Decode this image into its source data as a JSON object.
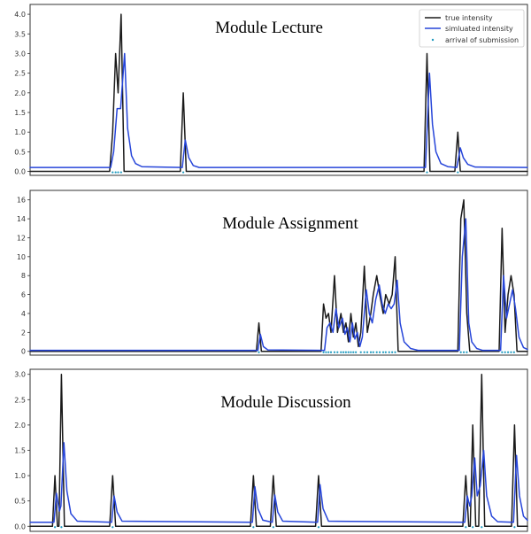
{
  "colors": {
    "true": "#1a1a1a",
    "simulated": "#2645d9",
    "arrival": "#1f9bc0"
  },
  "legend": {
    "placement": "top-right",
    "entries": [
      {
        "label": "true intensity",
        "color": "#1a1a1a",
        "kind": "line"
      },
      {
        "label": "simluated intensity",
        "color": "#2645d9",
        "kind": "line"
      },
      {
        "label": "arrival of submission",
        "color": "#1f9bc0",
        "kind": "marker"
      }
    ]
  },
  "chart_data": [
    {
      "type": "line",
      "title": "Module Lecture",
      "xlim": [
        0,
        100
      ],
      "ylim": [
        -0.1,
        4.25
      ],
      "yticks": [
        0.0,
        0.5,
        1.0,
        1.5,
        2.0,
        2.5,
        3.0,
        3.5,
        4.0
      ],
      "ytick_labels": [
        "0.0",
        "0.5",
        "1.0",
        "1.5",
        "2.0",
        "2.5",
        "3.0",
        "3.5",
        "4.0"
      ],
      "baseline": {
        "true": 0.0,
        "simulated": 0.1
      },
      "series": [
        {
          "key": "true",
          "points": [
            [
              0,
              0
            ],
            [
              16,
              0
            ],
            [
              16.6,
              1.0
            ],
            [
              17.2,
              3.0
            ],
            [
              17.7,
              2.0
            ],
            [
              18.3,
              4.0
            ],
            [
              18.9,
              0.0
            ],
            [
              30.2,
              0.0
            ],
            [
              30.8,
              2.0
            ],
            [
              31.4,
              0.0
            ],
            [
              79.2,
              0.0
            ],
            [
              79.8,
              3.0
            ],
            [
              80.4,
              0.0
            ],
            [
              85.4,
              0.0
            ],
            [
              86.0,
              1.0
            ],
            [
              86.5,
              0.0
            ],
            [
              100,
              0
            ]
          ]
        },
        {
          "key": "simulated",
          "points": [
            [
              0,
              0.1
            ],
            [
              16.2,
              0.1
            ],
            [
              16.8,
              0.5
            ],
            [
              17.5,
              1.6
            ],
            [
              18.2,
              1.6
            ],
            [
              19.0,
              3.0
            ],
            [
              19.6,
              1.1
            ],
            [
              20.4,
              0.4
            ],
            [
              21.2,
              0.2
            ],
            [
              22.5,
              0.12
            ],
            [
              30.6,
              0.1
            ],
            [
              31.2,
              0.8
            ],
            [
              31.9,
              0.35
            ],
            [
              32.8,
              0.15
            ],
            [
              34,
              0.1
            ],
            [
              79.5,
              0.1
            ],
            [
              80.3,
              2.5
            ],
            [
              80.9,
              1.2
            ],
            [
              81.6,
              0.5
            ],
            [
              82.6,
              0.2
            ],
            [
              84,
              0.12
            ],
            [
              85.8,
              0.1
            ],
            [
              86.5,
              0.6
            ],
            [
              87.1,
              0.35
            ],
            [
              88,
              0.18
            ],
            [
              89.5,
              0.11
            ],
            [
              100,
              0.1
            ]
          ]
        }
      ],
      "arrivals": [
        [
          16.6,
          0
        ],
        [
          17.2,
          0
        ],
        [
          17.7,
          0
        ],
        [
          18.3,
          0
        ],
        [
          30.8,
          0
        ],
        [
          79.8,
          0
        ],
        [
          86.0,
          0
        ]
      ]
    },
    {
      "type": "line",
      "title": "Module Assignment",
      "xlim": [
        0,
        100
      ],
      "ylim": [
        -0.4,
        17
      ],
      "yticks": [
        0,
        2,
        4,
        6,
        8,
        10,
        12,
        14,
        16
      ],
      "ytick_labels": [
        "0",
        "2",
        "4",
        "6",
        "8",
        "10",
        "12",
        "14",
        "16"
      ],
      "baseline": {
        "true": 0.0,
        "simulated": 0.1
      },
      "series": [
        {
          "key": "true",
          "points": [
            [
              0,
              0
            ],
            [
              45.5,
              0
            ],
            [
              46,
              3.0
            ],
            [
              46.5,
              0
            ],
            [
              58.5,
              0
            ],
            [
              59,
              5.0
            ],
            [
              59.5,
              3.5
            ],
            [
              60,
              4.0
            ],
            [
              60.5,
              2.0
            ],
            [
              61.2,
              8.0
            ],
            [
              61.8,
              2.0
            ],
            [
              62.5,
              4.0
            ],
            [
              63,
              2.0
            ],
            [
              63.5,
              3.0
            ],
            [
              64,
              1.0
            ],
            [
              64.5,
              4.0
            ],
            [
              65,
              1.5
            ],
            [
              65.5,
              3.0
            ],
            [
              66,
              0.5
            ],
            [
              66.5,
              2.0
            ],
            [
              67.2,
              9.0
            ],
            [
              67.8,
              2.0
            ],
            [
              68.5,
              4.0
            ],
            [
              69,
              6.0
            ],
            [
              69.7,
              8.0
            ],
            [
              70.3,
              6.0
            ],
            [
              71,
              4.0
            ],
            [
              71.5,
              6.0
            ],
            [
              72.2,
              5.0
            ],
            [
              72.8,
              6.0
            ],
            [
              73.4,
              10.0
            ],
            [
              74,
              0.0
            ],
            [
              86,
              0
            ],
            [
              86.6,
              14.0
            ],
            [
              87.2,
              16.0
            ],
            [
              87.8,
              4.0
            ],
            [
              88.4,
              0.0
            ],
            [
              94.3,
              0
            ],
            [
              94.9,
              13.0
            ],
            [
              95.5,
              2.0
            ],
            [
              96.1,
              6.0
            ],
            [
              96.7,
              8.0
            ],
            [
              97.3,
              6.0
            ],
            [
              97.9,
              0.0
            ],
            [
              100,
              0
            ]
          ]
        },
        {
          "key": "simulated",
          "points": [
            [
              0,
              0.1
            ],
            [
              45.8,
              0.1
            ],
            [
              46.3,
              1.8
            ],
            [
              46.9,
              0.5
            ],
            [
              47.8,
              0.15
            ],
            [
              59.2,
              0.1
            ],
            [
              59.7,
              2.5
            ],
            [
              60.3,
              3.0
            ],
            [
              60.9,
              2.0
            ],
            [
              61.5,
              4.5
            ],
            [
              62.1,
              2.5
            ],
            [
              62.8,
              3.5
            ],
            [
              63.3,
              1.8
            ],
            [
              63.8,
              2.5
            ],
            [
              64.3,
              1.0
            ],
            [
              64.8,
              3.0
            ],
            [
              65.3,
              1.3
            ],
            [
              65.8,
              2.0
            ],
            [
              66.3,
              0.5
            ],
            [
              66.8,
              1.5
            ],
            [
              67.6,
              6.5
            ],
            [
              68.2,
              4.0
            ],
            [
              68.8,
              3.0
            ],
            [
              69.5,
              5.5
            ],
            [
              70.2,
              7.0
            ],
            [
              70.8,
              5.0
            ],
            [
              71.4,
              4.0
            ],
            [
              72.0,
              5.0
            ],
            [
              72.6,
              4.5
            ],
            [
              73.2,
              5.0
            ],
            [
              73.8,
              7.5
            ],
            [
              74.4,
              3.0
            ],
            [
              75.2,
              1.0
            ],
            [
              76.5,
              0.3
            ],
            [
              78,
              0.1
            ],
            [
              86.3,
              0.1
            ],
            [
              86.9,
              10.0
            ],
            [
              87.6,
              14.0
            ],
            [
              88.2,
              3.0
            ],
            [
              88.8,
              1.0
            ],
            [
              89.8,
              0.3
            ],
            [
              91,
              0.1
            ],
            [
              94.6,
              0.1
            ],
            [
              95.2,
              8.0
            ],
            [
              95.8,
              3.5
            ],
            [
              96.4,
              5.0
            ],
            [
              97.0,
              6.5
            ],
            [
              97.6,
              4.5
            ],
            [
              98.3,
              1.5
            ],
            [
              99.2,
              0.4
            ],
            [
              100,
              0.2
            ]
          ]
        }
      ],
      "arrivals": [
        [
          46,
          0
        ],
        [
          59,
          0
        ],
        [
          59.5,
          0
        ],
        [
          60,
          0
        ],
        [
          60.5,
          0
        ],
        [
          61.2,
          0
        ],
        [
          61.8,
          0
        ],
        [
          62.5,
          0
        ],
        [
          63,
          0
        ],
        [
          63.5,
          0
        ],
        [
          64,
          0
        ],
        [
          64.5,
          0
        ],
        [
          65,
          0
        ],
        [
          65.5,
          0
        ],
        [
          66.5,
          0
        ],
        [
          67.2,
          0
        ],
        [
          67.8,
          0
        ],
        [
          68.5,
          0
        ],
        [
          69,
          0
        ],
        [
          69.7,
          0
        ],
        [
          70.3,
          0
        ],
        [
          71,
          0
        ],
        [
          71.5,
          0
        ],
        [
          72.2,
          0
        ],
        [
          72.8,
          0
        ],
        [
          73.4,
          0
        ],
        [
          86.6,
          0
        ],
        [
          87.2,
          0
        ],
        [
          87.8,
          0
        ],
        [
          94.9,
          0
        ],
        [
          95.5,
          0
        ],
        [
          96.1,
          0
        ],
        [
          96.7,
          0
        ],
        [
          97.3,
          0
        ]
      ]
    },
    {
      "type": "line",
      "title": "Module Discussion",
      "xlim": [
        0,
        100
      ],
      "ylim": [
        -0.1,
        3.1
      ],
      "yticks": [
        0.0,
        0.5,
        1.0,
        1.5,
        2.0,
        2.5,
        3.0
      ],
      "ytick_labels": [
        "0.0",
        "0.5",
        "1.0",
        "1.5",
        "2.0",
        "2.5",
        "3.0"
      ],
      "baseline": {
        "true": 0.0,
        "simulated": 0.08
      },
      "series": [
        {
          "key": "true",
          "points": [
            [
              0,
              0
            ],
            [
              4.5,
              0
            ],
            [
              5.0,
              1.0
            ],
            [
              5.5,
              0.0
            ],
            [
              5.8,
              0
            ],
            [
              6.3,
              3.0
            ],
            [
              6.9,
              0.0
            ],
            [
              16,
              0
            ],
            [
              16.6,
              1.0
            ],
            [
              17.2,
              0.0
            ],
            [
              44.3,
              0
            ],
            [
              44.9,
              1.0
            ],
            [
              45.5,
              0.0
            ],
            [
              48.3,
              0
            ],
            [
              48.9,
              1.0
            ],
            [
              49.5,
              0.0
            ],
            [
              57.4,
              0
            ],
            [
              58,
              1.0
            ],
            [
              58.6,
              0.0
            ],
            [
              87,
              0
            ],
            [
              87.6,
              1.0
            ],
            [
              88.2,
              0.0
            ],
            [
              88.5,
              0
            ],
            [
              89,
              2.0
            ],
            [
              89.6,
              0.0
            ],
            [
              90.2,
              0
            ],
            [
              90.8,
              3.0
            ],
            [
              91.4,
              0.0
            ],
            [
              96.8,
              0
            ],
            [
              97.4,
              2.0
            ],
            [
              98,
              0.0
            ],
            [
              100,
              0
            ]
          ]
        },
        {
          "key": "simulated",
          "points": [
            [
              0,
              0.08
            ],
            [
              4.8,
              0.08
            ],
            [
              5.3,
              0.65
            ],
            [
              5.9,
              0.3
            ],
            [
              6.2,
              0.4
            ],
            [
              6.8,
              1.65
            ],
            [
              7.4,
              0.7
            ],
            [
              8.2,
              0.25
            ],
            [
              9.5,
              0.1
            ],
            [
              16.4,
              0.08
            ],
            [
              16.9,
              0.6
            ],
            [
              17.5,
              0.28
            ],
            [
              18.5,
              0.1
            ],
            [
              44.7,
              0.08
            ],
            [
              45.2,
              0.78
            ],
            [
              45.8,
              0.35
            ],
            [
              46.8,
              0.12
            ],
            [
              48.7,
              0.08
            ],
            [
              49.2,
              0.62
            ],
            [
              49.8,
              0.28
            ],
            [
              50.8,
              0.1
            ],
            [
              57.8,
              0.08
            ],
            [
              58.3,
              0.82
            ],
            [
              58.9,
              0.35
            ],
            [
              60,
              0.1
            ],
            [
              87.4,
              0.08
            ],
            [
              87.9,
              0.6
            ],
            [
              88.4,
              0.4
            ],
            [
              88.8,
              0.6
            ],
            [
              89.4,
              1.35
            ],
            [
              89.9,
              0.6
            ],
            [
              90.5,
              0.8
            ],
            [
              91.2,
              1.5
            ],
            [
              91.8,
              0.6
            ],
            [
              92.8,
              0.2
            ],
            [
              94,
              0.09
            ],
            [
              97.2,
              0.08
            ],
            [
              97.8,
              1.4
            ],
            [
              98.4,
              0.6
            ],
            [
              99.2,
              0.2
            ],
            [
              100,
              0.12
            ]
          ]
        }
      ],
      "arrivals": [
        [
          5.0,
          0
        ],
        [
          6.3,
          0
        ],
        [
          16.6,
          0
        ],
        [
          44.9,
          0
        ],
        [
          48.9,
          0
        ],
        [
          58,
          0
        ],
        [
          87.6,
          0
        ],
        [
          89,
          0
        ],
        [
          90.8,
          0
        ],
        [
          97.4,
          0
        ]
      ]
    }
  ]
}
